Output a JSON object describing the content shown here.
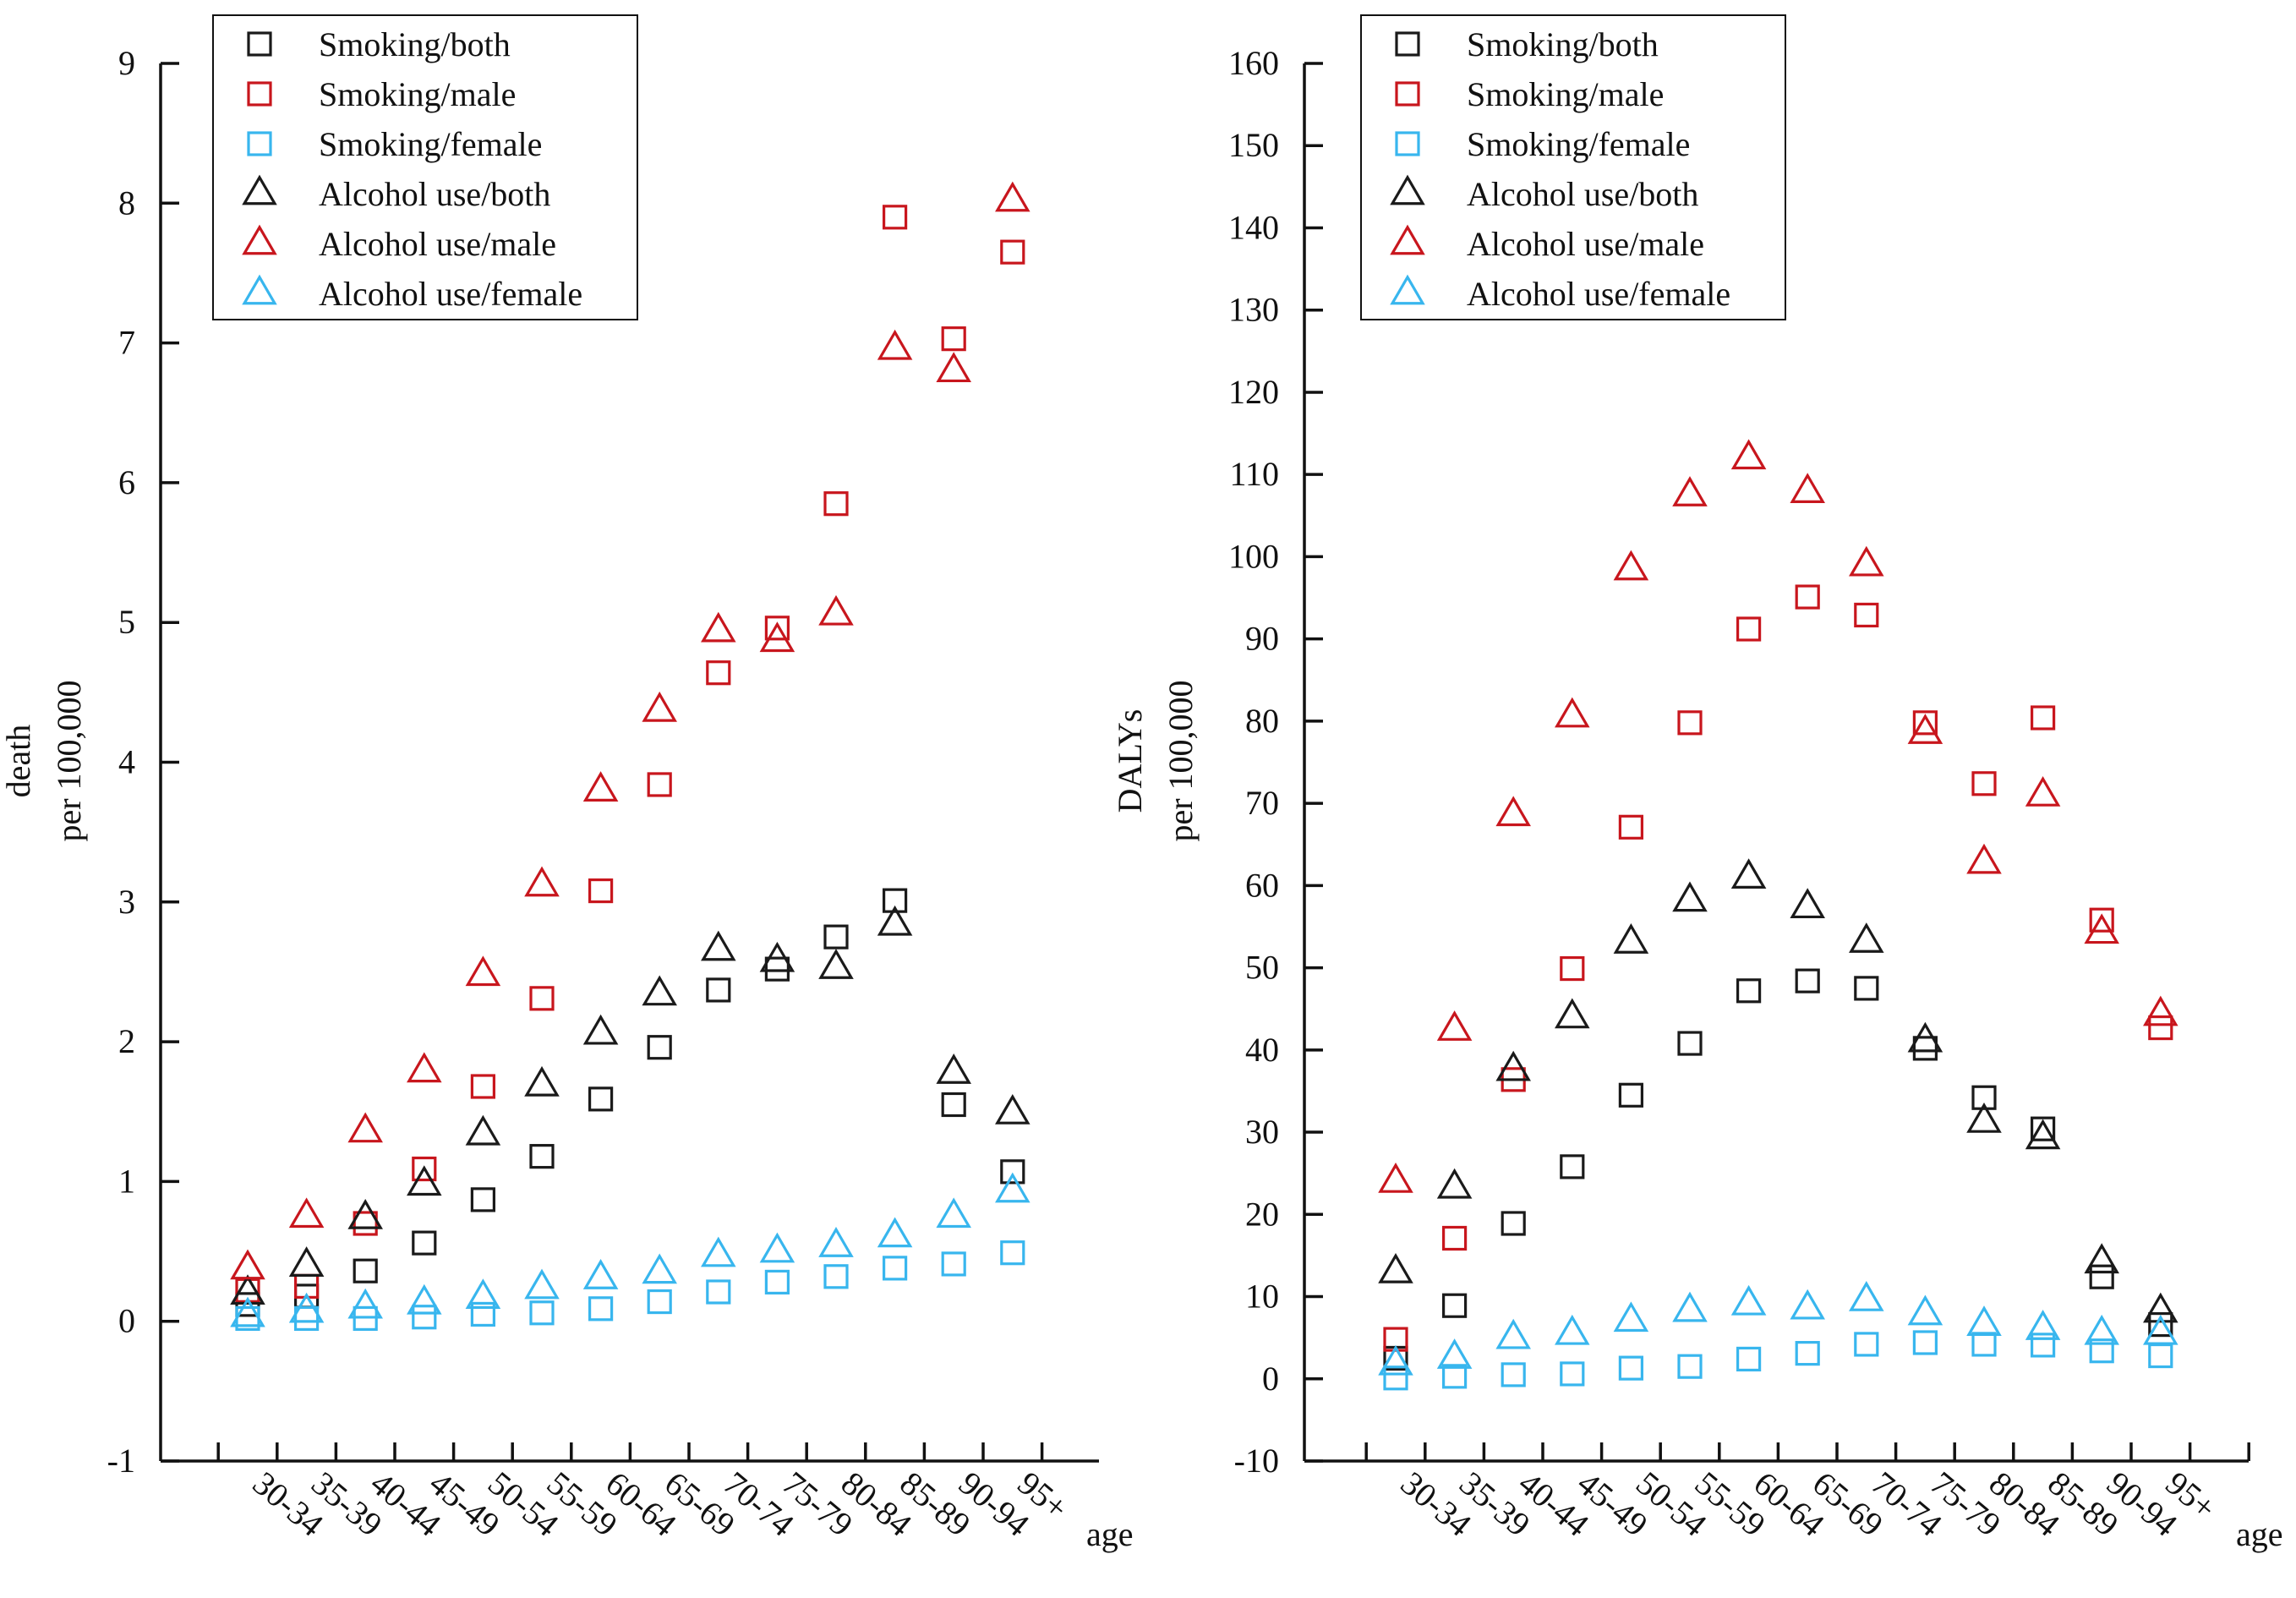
{
  "colors": {
    "both": "#1a1a1a",
    "male": "#c8161d",
    "female": "#38b6ee"
  },
  "chart_data": [
    {
      "type": "scatter",
      "title": "",
      "ylabel_line1": "death",
      "ylabel_line2": "per 100,000",
      "xlabel": "age",
      "ylim": [
        -1,
        9
      ],
      "yticks": [
        "-1",
        "0",
        "1",
        "2",
        "3",
        "4",
        "5",
        "6",
        "7",
        "8",
        "9"
      ],
      "categories": [
        "30-34",
        "35-39",
        "40-44",
        "45-49",
        "50-54",
        "55-59",
        "60-64",
        "65-69",
        "70-74",
        "75-79",
        "80-84",
        "85-89",
        "90-94",
        "95+"
      ],
      "legend_position": "top-left",
      "series": [
        {
          "name": "Smoking/both",
          "marker": "square",
          "color_key": "both",
          "values": [
            0.12,
            0.18,
            0.36,
            0.56,
            0.87,
            1.18,
            1.59,
            1.96,
            2.37,
            2.52,
            2.75,
            3.01,
            1.55,
            1.07
          ]
        },
        {
          "name": "Smoking/male",
          "marker": "square",
          "color_key": "male",
          "values": [
            0.22,
            0.25,
            0.7,
            1.09,
            1.68,
            2.31,
            3.08,
            3.84,
            4.64,
            4.96,
            5.85,
            7.9,
            7.03,
            7.65
          ]
        },
        {
          "name": "Smoking/female",
          "marker": "square",
          "color_key": "female",
          "values": [
            0.02,
            0.02,
            0.02,
            0.03,
            0.05,
            0.06,
            0.09,
            0.14,
            0.21,
            0.28,
            0.32,
            0.38,
            0.41,
            0.49
          ]
        },
        {
          "name": "Alcohol use/both",
          "marker": "triangle",
          "color_key": "both",
          "values": [
            0.2,
            0.4,
            0.74,
            0.98,
            1.34,
            1.69,
            2.06,
            2.34,
            2.66,
            2.58,
            2.53,
            2.84,
            1.78,
            1.49
          ]
        },
        {
          "name": "Alcohol use/male",
          "marker": "triangle",
          "color_key": "male",
          "values": [
            0.38,
            0.75,
            1.36,
            1.79,
            2.48,
            3.12,
            3.8,
            4.37,
            4.94,
            4.87,
            5.06,
            6.96,
            6.8,
            8.02
          ]
        },
        {
          "name": "Alcohol use/female",
          "marker": "triangle",
          "color_key": "female",
          "values": [
            0.04,
            0.07,
            0.1,
            0.13,
            0.17,
            0.24,
            0.31,
            0.35,
            0.47,
            0.5,
            0.54,
            0.61,
            0.75,
            0.93
          ]
        }
      ]
    },
    {
      "type": "scatter",
      "title": "",
      "ylabel_line1": "DALYs",
      "ylabel_line2": "per 100,000",
      "xlabel": "age",
      "ylim": [
        -10,
        160
      ],
      "yticks": [
        "-10",
        "0",
        "10",
        "20",
        "30",
        "40",
        "50",
        "60",
        "70",
        "80",
        "90",
        "100",
        "110",
        "120",
        "130",
        "140",
        "150",
        "160"
      ],
      "categories": [
        "30-34",
        "35-39",
        "40-44",
        "45-49",
        "50-54",
        "55-59",
        "60-64",
        "65-69",
        "70-74",
        "75-79",
        "80-84",
        "85-89",
        "90-94",
        "95+"
      ],
      "legend_position": "top-left",
      "series": [
        {
          "name": "Smoking/both",
          "marker": "square",
          "color_key": "both",
          "values": [
            2.5,
            8.9,
            18.9,
            25.8,
            34.5,
            40.8,
            47.2,
            48.4,
            47.5,
            40.2,
            34.2,
            30.4,
            12.4,
            6.6
          ]
        },
        {
          "name": "Smoking/male",
          "marker": "square",
          "color_key": "male",
          "values": [
            4.8,
            17.1,
            36.4,
            49.9,
            67.1,
            79.8,
            91.2,
            95.1,
            92.9,
            79.8,
            72.4,
            80.4,
            55.8,
            42.7
          ]
        },
        {
          "name": "Smoking/female",
          "marker": "square",
          "color_key": "female",
          "values": [
            0.1,
            0.3,
            0.5,
            0.6,
            1.3,
            1.5,
            2.4,
            3.1,
            4.2,
            4.4,
            4.2,
            4.1,
            3.4,
            2.8
          ]
        },
        {
          "name": "Alcohol use/both",
          "marker": "triangle",
          "color_key": "both",
          "values": [
            13.0,
            23.3,
            37.6,
            44.0,
            53.1,
            58.2,
            61.0,
            57.4,
            53.2,
            41.1,
            31.3,
            29.3,
            14.2,
            8.2
          ]
        },
        {
          "name": "Alcohol use/male",
          "marker": "triangle",
          "color_key": "male",
          "values": [
            24.0,
            42.5,
            68.6,
            80.6,
            98.5,
            107.5,
            112.0,
            107.9,
            99.0,
            78.6,
            62.8,
            71.0,
            54.3,
            44.3
          ]
        },
        {
          "name": "Alcohol use/female",
          "marker": "triangle",
          "color_key": "female",
          "values": [
            1.8,
            2.6,
            5.0,
            5.5,
            7.1,
            8.3,
            9.1,
            8.6,
            9.6,
            7.9,
            6.6,
            6.1,
            5.5,
            5.5
          ]
        }
      ]
    }
  ]
}
